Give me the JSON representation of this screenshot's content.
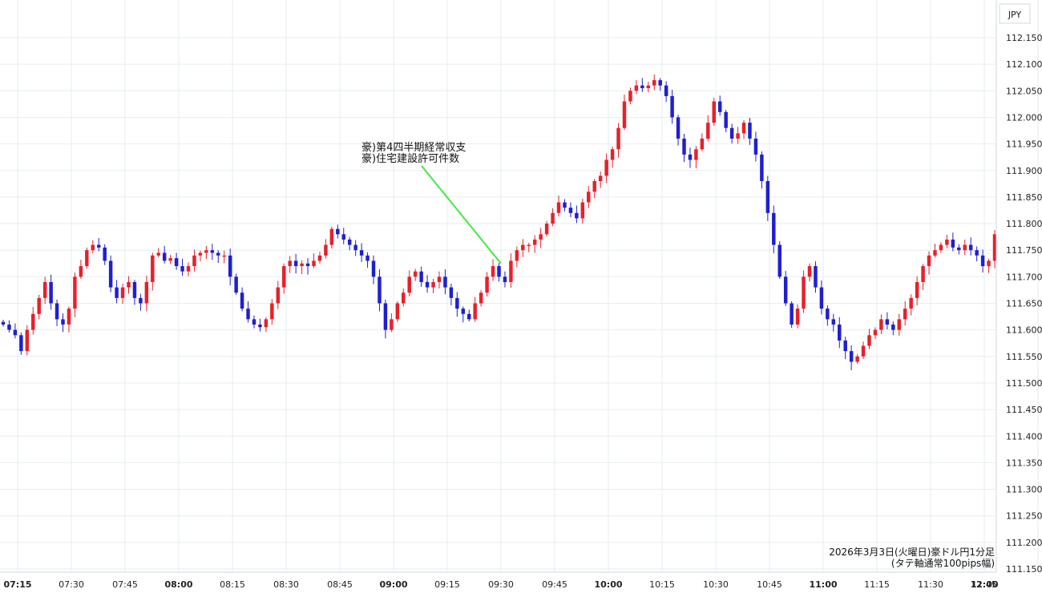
{
  "chart_data": {
    "type": "candlestick",
    "title": "",
    "caption_lines": [
      "2026年3月3日(火曜日)豪ドル円1分足",
      "(タテ軸通常100pips幅)"
    ],
    "currency_label": "JPY",
    "ylim": [
      111.14,
      112.18
    ],
    "y_ticks": [
      "112.150",
      "112.100",
      "112.050",
      "112.000",
      "111.950",
      "111.900",
      "111.850",
      "111.800",
      "111.750",
      "111.700",
      "111.650",
      "111.600",
      "111.550",
      "111.500",
      "111.450",
      "111.400",
      "111.350",
      "111.300",
      "111.250",
      "111.200",
      "111.150"
    ],
    "x_ticks": [
      {
        "label": "07:15",
        "major": true
      },
      {
        "label": "07:30",
        "major": false
      },
      {
        "label": "07:45",
        "major": false
      },
      {
        "label": "08:00",
        "major": true
      },
      {
        "label": "08:15",
        "major": false
      },
      {
        "label": "08:30",
        "major": false
      },
      {
        "label": "08:45",
        "major": false
      },
      {
        "label": "09:00",
        "major": true
      },
      {
        "label": "09:15",
        "major": false
      },
      {
        "label": "09:30",
        "major": false
      },
      {
        "label": "09:45",
        "major": false
      },
      {
        "label": "10:00",
        "major": true
      },
      {
        "label": "10:15",
        "major": false
      },
      {
        "label": "10:30",
        "major": false
      },
      {
        "label": "10:45",
        "major": false
      },
      {
        "label": "11:00",
        "major": true
      },
      {
        "label": "11:15",
        "major": false
      },
      {
        "label": "11:30",
        "major": false
      },
      {
        "label": "11:45",
        "major": false
      },
      {
        "label": "12:00",
        "major": true
      }
    ],
    "up_color": "#e8202a",
    "down_color": "#1f1fd0",
    "annotation": {
      "lines": [
        "豪)第4四半期経常収支",
        "豪)住宅建設許可件数"
      ],
      "time": "09:30",
      "price": 111.725,
      "color": "#44e844"
    },
    "series_close": [
      111.61,
      111.6,
      111.59,
      111.56,
      111.6,
      111.63,
      111.66,
      111.69,
      111.65,
      111.62,
      111.61,
      111.64,
      111.7,
      111.72,
      111.75,
      111.76,
      111.755,
      111.73,
      111.68,
      111.66,
      111.68,
      111.69,
      111.66,
      111.65,
      111.69,
      111.74,
      111.745,
      111.73,
      111.735,
      111.72,
      111.71,
      111.72,
      111.74,
      111.745,
      111.75,
      111.745,
      111.74,
      111.74,
      111.7,
      111.67,
      111.64,
      111.62,
      111.61,
      111.605,
      111.62,
      111.65,
      111.68,
      111.72,
      111.73,
      111.72,
      111.725,
      111.72,
      111.73,
      111.74,
      111.76,
      111.79,
      111.78,
      111.77,
      111.76,
      111.75,
      111.74,
      111.73,
      111.7,
      111.65,
      111.6,
      111.62,
      111.65,
      111.67,
      111.7,
      111.71,
      111.69,
      111.68,
      111.69,
      111.7,
      111.68,
      111.66,
      111.64,
      111.63,
      111.62,
      111.65,
      111.67,
      111.7,
      111.72,
      111.7,
      111.69,
      111.73,
      111.75,
      111.76,
      111.76,
      111.77,
      111.78,
      111.8,
      111.82,
      111.84,
      111.83,
      111.82,
      111.81,
      111.84,
      111.86,
      111.88,
      111.89,
      111.92,
      111.94,
      111.98,
      112.03,
      112.05,
      112.06,
      112.055,
      112.06,
      112.07,
      112.06,
      112.04,
      112.0,
      111.96,
      111.93,
      111.92,
      111.94,
      111.96,
      111.99,
      112.03,
      112.01,
      111.98,
      111.96,
      111.97,
      111.99,
      111.96,
      111.93,
      111.88,
      111.82,
      111.76,
      111.7,
      111.65,
      111.61,
      111.64,
      111.7,
      111.72,
      111.68,
      111.64,
      111.62,
      111.61,
      111.58,
      111.56,
      111.54,
      111.55,
      111.57,
      111.59,
      111.6,
      111.62,
      111.61,
      111.6,
      111.62,
      111.64,
      111.66,
      111.69,
      111.72,
      111.74,
      111.75,
      111.76,
      111.77,
      111.755,
      111.75,
      111.76,
      111.75,
      111.74,
      111.72,
      111.73,
      111.78
    ],
    "series": [
      {
        "values": []
      }
    ]
  }
}
